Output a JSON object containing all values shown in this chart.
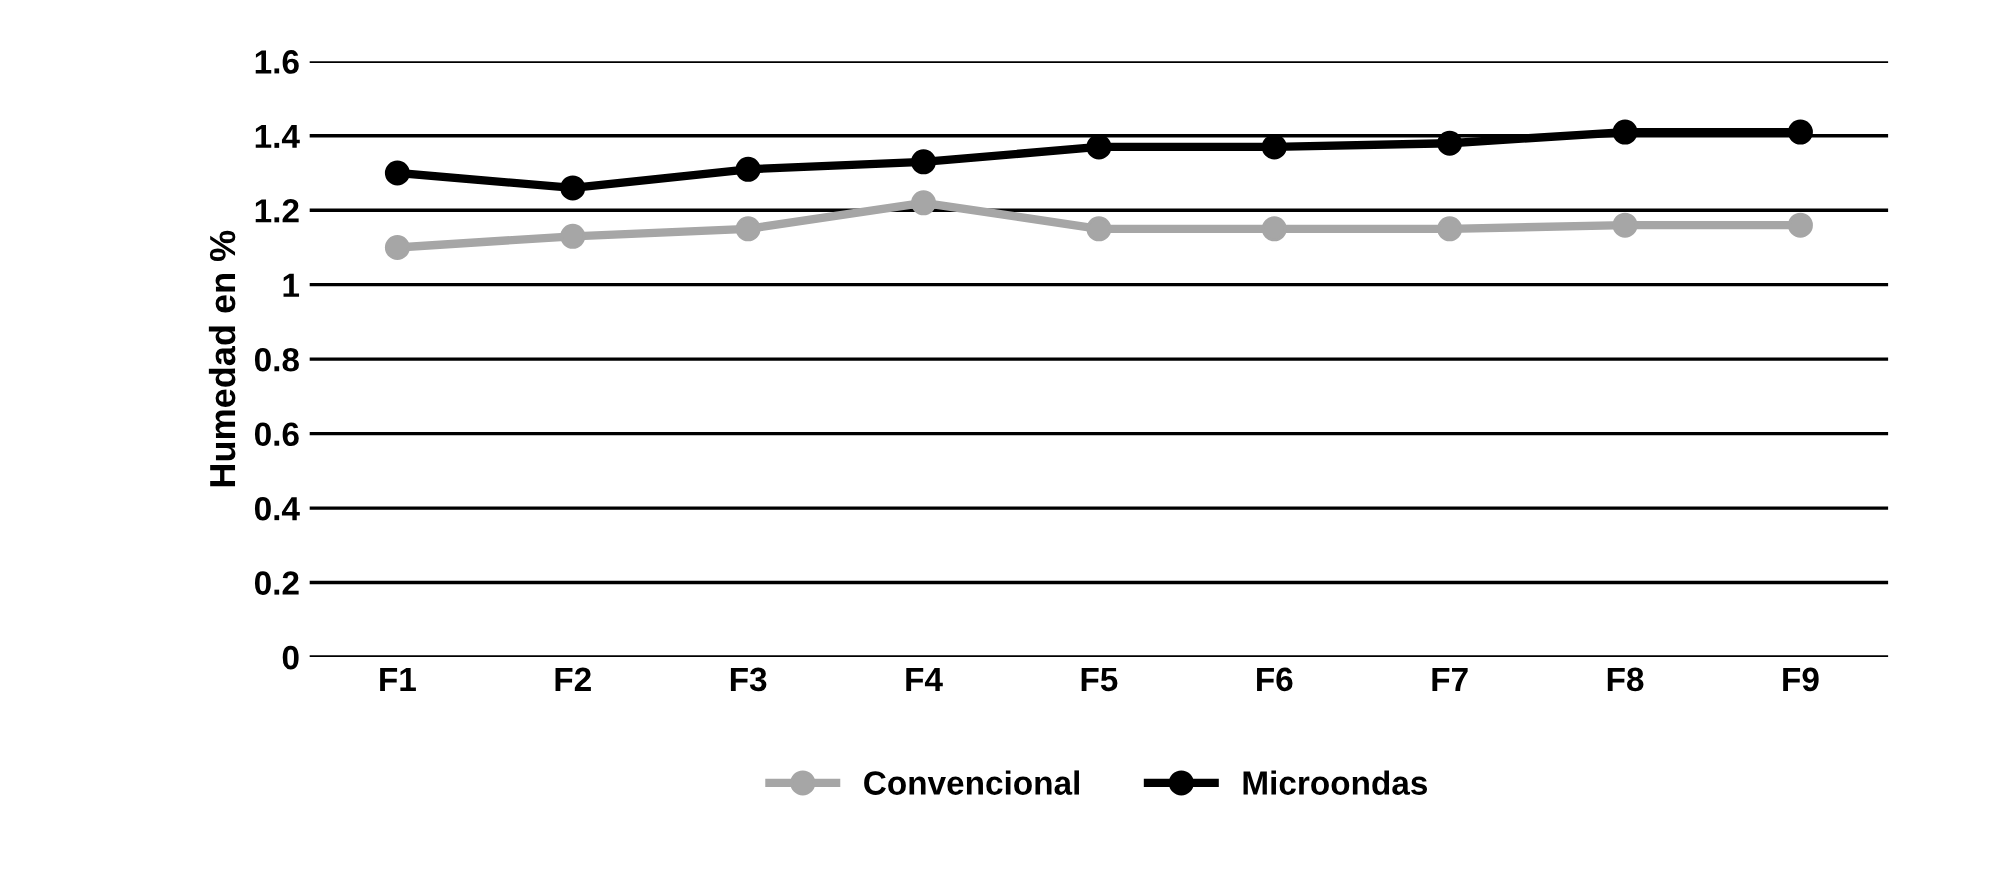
{
  "chart_data": {
    "type": "line",
    "ylabel": "Humedad en %",
    "categories": [
      "F1",
      "F2",
      "F3",
      "F4",
      "F5",
      "F6",
      "F7",
      "F8",
      "F9"
    ],
    "series": [
      {
        "name": "Convencional",
        "color": "#a6a6a6",
        "values": [
          1.1,
          1.13,
          1.15,
          1.22,
          1.15,
          1.15,
          1.15,
          1.16,
          1.16
        ]
      },
      {
        "name": "Microondas",
        "color": "#000000",
        "values": [
          1.3,
          1.26,
          1.31,
          1.33,
          1.37,
          1.37,
          1.38,
          1.41,
          1.41
        ]
      }
    ],
    "ylim": [
      0,
      1.6
    ],
    "yticks": [
      0,
      0.2,
      0.4,
      0.6,
      0.8,
      1,
      1.2,
      1.4,
      1.6
    ],
    "grid": "y",
    "legend": "bottom",
    "marker": "circle",
    "line_style": "solid"
  }
}
